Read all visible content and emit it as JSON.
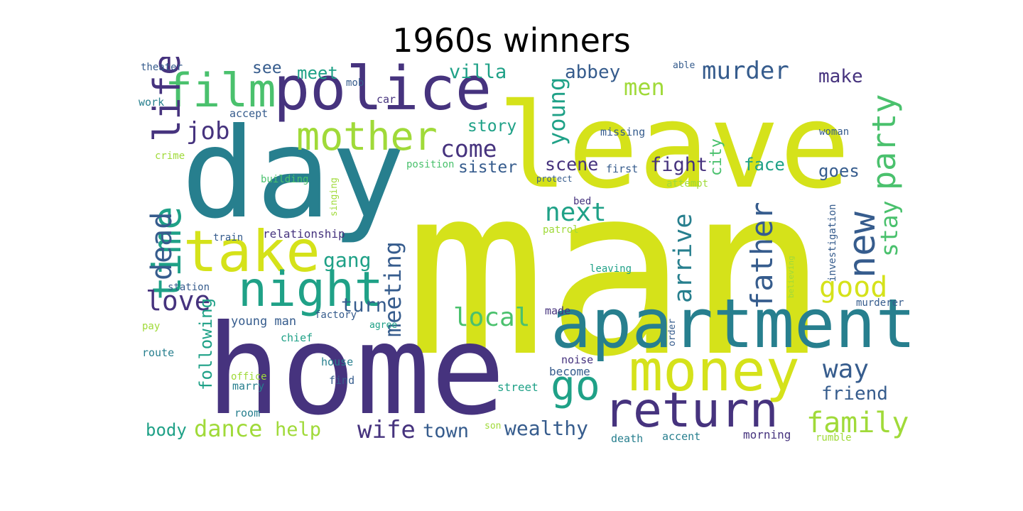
{
  "title": "1960s winners",
  "palette": {
    "purple": "#46337e",
    "indigo": "#365c8d",
    "teal": "#277f8e",
    "green": "#1fa187",
    "lime": "#4ac16d",
    "yellowgreen": "#a0da39",
    "yellow": "#d5e21a"
  },
  "words": [
    {
      "text": "man",
      "color": "yellow",
      "vertical": false
    },
    {
      "text": "leave",
      "color": "yellow",
      "vertical": false
    },
    {
      "text": "home",
      "color": "purple",
      "vertical": false
    },
    {
      "text": "day",
      "color": "teal",
      "vertical": false
    },
    {
      "text": "police",
      "color": "purple",
      "vertical": false
    },
    {
      "text": "apartment",
      "color": "teal",
      "vertical": false
    },
    {
      "text": "money",
      "color": "yellow",
      "vertical": false
    },
    {
      "text": "take",
      "color": "yellow",
      "vertical": false
    },
    {
      "text": "night",
      "color": "green",
      "vertical": false
    },
    {
      "text": "return",
      "color": "purple",
      "vertical": false
    },
    {
      "text": "mother",
      "color": "yellowgreen",
      "vertical": false
    },
    {
      "text": "film",
      "color": "lime",
      "vertical": false
    },
    {
      "text": "life",
      "color": "purple",
      "vertical": true
    },
    {
      "text": "time",
      "color": "green",
      "vertical": true
    },
    {
      "text": "dead",
      "color": "indigo",
      "vertical": true
    },
    {
      "text": "new",
      "color": "indigo",
      "vertical": true
    },
    {
      "text": "party",
      "color": "lime",
      "vertical": true
    },
    {
      "text": "go",
      "color": "green",
      "vertical": false
    },
    {
      "text": "father",
      "color": "indigo",
      "vertical": true
    },
    {
      "text": "good",
      "color": "yellow",
      "vertical": false
    },
    {
      "text": "stay",
      "color": "lime",
      "vertical": true
    },
    {
      "text": "family",
      "color": "yellowgreen",
      "vertical": false
    },
    {
      "text": "meeting",
      "color": "indigo",
      "vertical": true
    },
    {
      "text": "arrive",
      "color": "teal",
      "vertical": true
    },
    {
      "text": "local",
      "color": "lime",
      "vertical": false
    },
    {
      "text": "young",
      "color": "green",
      "vertical": true
    },
    {
      "text": "love",
      "color": "purple",
      "vertical": false
    },
    {
      "text": "murder",
      "color": "indigo",
      "vertical": false
    },
    {
      "text": "come",
      "color": "purple",
      "vertical": false
    },
    {
      "text": "next",
      "color": "green",
      "vertical": false
    },
    {
      "text": "job",
      "color": "purple",
      "vertical": false
    },
    {
      "text": "way",
      "color": "indigo",
      "vertical": false
    },
    {
      "text": "wife",
      "color": "purple",
      "vertical": false
    },
    {
      "text": "dance",
      "color": "yellowgreen",
      "vertical": false
    },
    {
      "text": "men",
      "color": "yellowgreen",
      "vertical": false
    },
    {
      "text": "wealthy",
      "color": "indigo",
      "vertical": false
    },
    {
      "text": "fight",
      "color": "purple",
      "vertical": false
    },
    {
      "text": "following",
      "color": "green",
      "vertical": true
    },
    {
      "text": "friend",
      "color": "indigo",
      "vertical": false
    },
    {
      "text": "body",
      "color": "green",
      "vertical": false
    },
    {
      "text": "town",
      "color": "indigo",
      "vertical": false
    },
    {
      "text": "help",
      "color": "yellowgreen",
      "vertical": false
    },
    {
      "text": "turn",
      "color": "indigo",
      "vertical": false
    },
    {
      "text": "gang",
      "color": "green",
      "vertical": false
    },
    {
      "text": "meet",
      "color": "green",
      "vertical": false
    },
    {
      "text": "see",
      "color": "indigo",
      "vertical": false
    },
    {
      "text": "villa",
      "color": "green",
      "vertical": false
    },
    {
      "text": "abbey",
      "color": "indigo",
      "vertical": false
    },
    {
      "text": "make",
      "color": "purple",
      "vertical": false
    },
    {
      "text": "story",
      "color": "green",
      "vertical": false
    },
    {
      "text": "sister",
      "color": "indigo",
      "vertical": false
    },
    {
      "text": "scene",
      "color": "purple",
      "vertical": false
    },
    {
      "text": "city",
      "color": "lime",
      "vertical": true
    },
    {
      "text": "face",
      "color": "green",
      "vertical": false
    },
    {
      "text": "goes",
      "color": "indigo",
      "vertical": false
    },
    {
      "text": "theater",
      "color": "indigo",
      "vertical": false
    },
    {
      "text": "work",
      "color": "teal",
      "vertical": false
    },
    {
      "text": "crime",
      "color": "yellowgreen",
      "vertical": false
    },
    {
      "text": "mob",
      "color": "indigo",
      "vertical": false
    },
    {
      "text": "car",
      "color": "purple",
      "vertical": false
    },
    {
      "text": "accept",
      "color": "indigo",
      "vertical": false
    },
    {
      "text": "position",
      "color": "lime",
      "vertical": false
    },
    {
      "text": "first",
      "color": "indigo",
      "vertical": false
    },
    {
      "text": "missing",
      "color": "indigo",
      "vertical": false
    },
    {
      "text": "woman",
      "color": "indigo",
      "vertical": false
    },
    {
      "text": "able",
      "color": "indigo",
      "vertical": false
    },
    {
      "text": "building",
      "color": "lime",
      "vertical": false
    },
    {
      "text": "singing",
      "color": "yellowgreen",
      "vertical": true
    },
    {
      "text": "protect",
      "color": "indigo",
      "vertical": false
    },
    {
      "text": "attempt",
      "color": "yellowgreen",
      "vertical": false
    },
    {
      "text": "bed",
      "color": "purple",
      "vertical": false
    },
    {
      "text": "patrol",
      "color": "yellowgreen",
      "vertical": false
    },
    {
      "text": "train",
      "color": "indigo",
      "vertical": false
    },
    {
      "text": "relationship",
      "color": "purple",
      "vertical": false
    },
    {
      "text": "investigation",
      "color": "indigo",
      "vertical": true
    },
    {
      "text": "believing",
      "color": "yellowgreen",
      "vertical": true
    },
    {
      "text": "leaving",
      "color": "green",
      "vertical": false
    },
    {
      "text": "station",
      "color": "indigo",
      "vertical": false
    },
    {
      "text": "made",
      "color": "purple",
      "vertical": false
    },
    {
      "text": "factory",
      "color": "indigo",
      "vertical": false
    },
    {
      "text": "agree",
      "color": "green",
      "vertical": false
    },
    {
      "text": "order",
      "color": "indigo",
      "vertical": true
    },
    {
      "text": "murderer",
      "color": "indigo",
      "vertical": false
    },
    {
      "text": "pay",
      "color": "yellowgreen",
      "vertical": false
    },
    {
      "text": "young man",
      "color": "indigo",
      "vertical": false
    },
    {
      "text": "chief",
      "color": "green",
      "vertical": false
    },
    {
      "text": "route",
      "color": "teal",
      "vertical": false
    },
    {
      "text": "house",
      "color": "teal",
      "vertical": false
    },
    {
      "text": "office",
      "color": "yellowgreen",
      "vertical": false
    },
    {
      "text": "marry",
      "color": "teal",
      "vertical": false
    },
    {
      "text": "find",
      "color": "indigo",
      "vertical": false
    },
    {
      "text": "noise",
      "color": "purple",
      "vertical": false
    },
    {
      "text": "become",
      "color": "indigo",
      "vertical": false
    },
    {
      "text": "street",
      "color": "green",
      "vertical": false
    },
    {
      "text": "room",
      "color": "teal",
      "vertical": false
    },
    {
      "text": "son",
      "color": "yellowgreen",
      "vertical": false
    },
    {
      "text": "death",
      "color": "teal",
      "vertical": false
    },
    {
      "text": "accent",
      "color": "teal",
      "vertical": false
    },
    {
      "text": "morning",
      "color": "purple",
      "vertical": false
    },
    {
      "text": "rumble",
      "color": "yellowgreen",
      "vertical": false
    }
  ]
}
